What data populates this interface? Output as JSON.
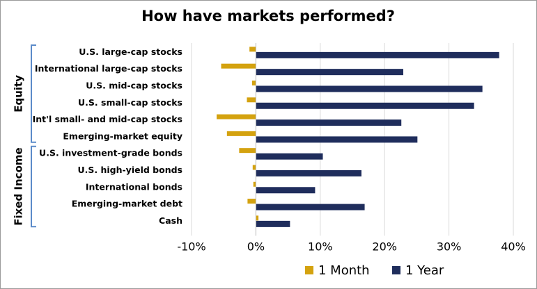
{
  "chart_data": {
    "type": "bar",
    "orientation": "horizontal",
    "title": "How have markets performed?",
    "group_labels": [
      "Equity",
      "Fixed Income"
    ],
    "categories": [
      "U.S. large-cap stocks",
      "International large-cap stocks",
      "U.S. mid-cap stocks",
      "U.S. small-cap stocks",
      "Int'l small- and mid-cap stocks",
      "Emerging-market equity",
      "U.S. investment-grade bonds",
      "U.S. high-yield bonds",
      "International bonds",
      "Emerging-market debt",
      "Cash"
    ],
    "series": [
      {
        "name": "1 Month",
        "color": "#d4a20f",
        "values": [
          -1.0,
          -5.4,
          -0.6,
          -1.4,
          -6.1,
          -4.5,
          -2.6,
          -0.5,
          -0.4,
          -1.3,
          0.4
        ]
      },
      {
        "name": "1 Year",
        "color": "#1f2d5c",
        "values": [
          37.8,
          22.9,
          35.2,
          33.9,
          22.6,
          25.1,
          10.4,
          16.4,
          9.2,
          16.9,
          5.3
        ]
      }
    ],
    "xlim": [
      -10,
      40
    ],
    "xticks": [
      {
        "value": -10,
        "label": "-10%"
      },
      {
        "value": 0,
        "label": "0%"
      },
      {
        "value": 10,
        "label": "10%"
      },
      {
        "value": 20,
        "label": "20%"
      },
      {
        "value": 30,
        "label": "30%"
      },
      {
        "value": 40,
        "label": "40%"
      }
    ],
    "grid": true,
    "legend": "bottom"
  }
}
